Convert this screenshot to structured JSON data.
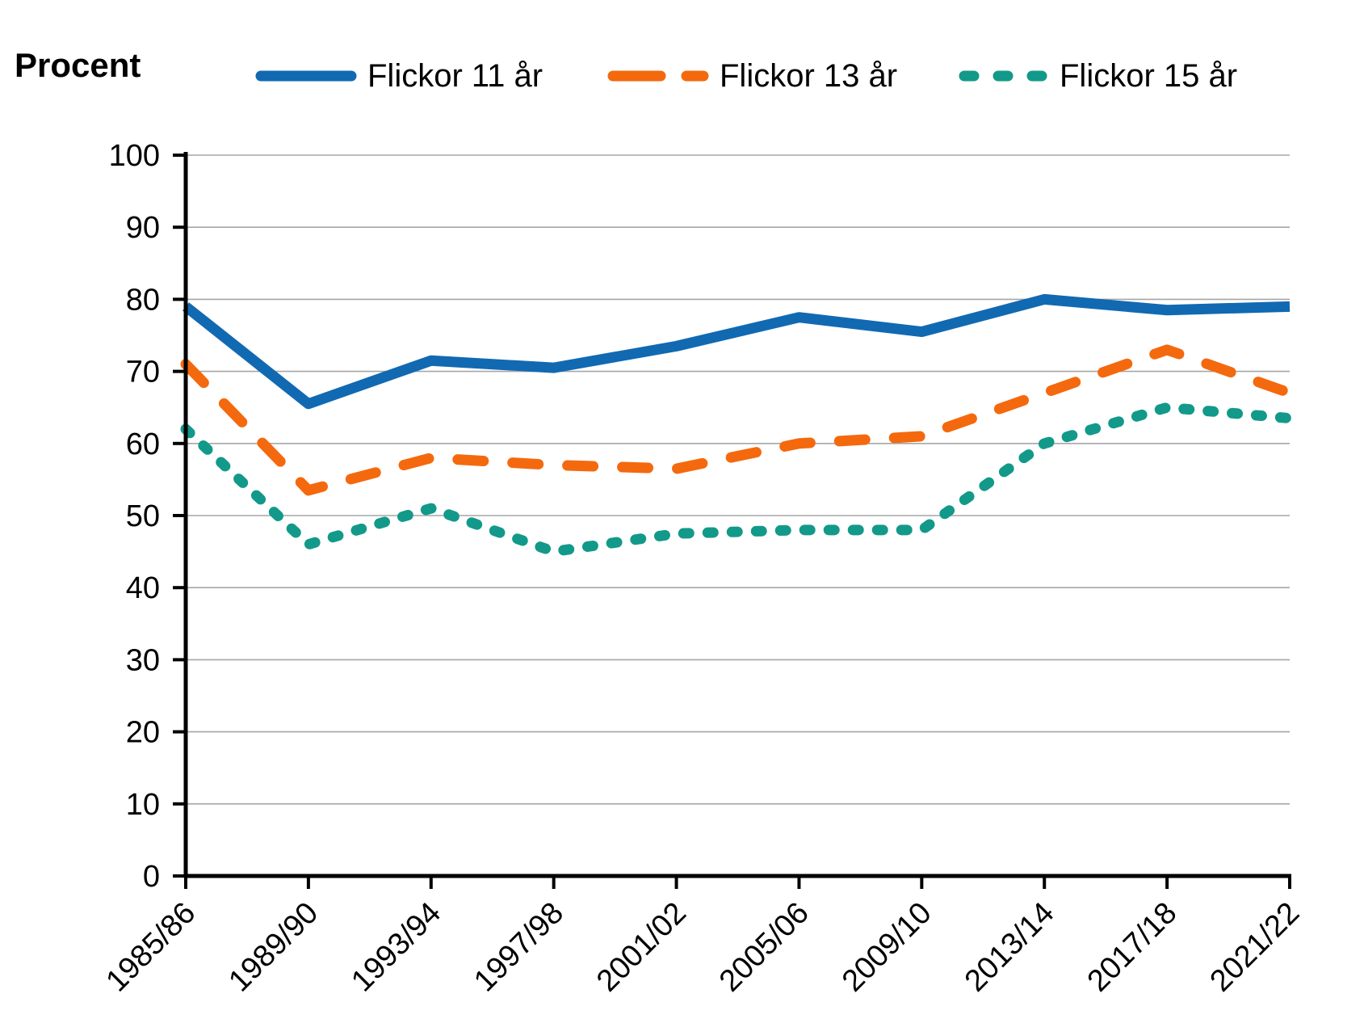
{
  "page": {
    "background": "#FFFFFF"
  },
  "chart_data": {
    "type": "line",
    "title": "",
    "y_axis_title": "Procent",
    "categories": [
      "1985/86",
      "1989/90",
      "1993/94",
      "1997/98",
      "2001/02",
      "2005/06",
      "2009/10",
      "2013/14",
      "2017/18",
      "2021/22"
    ],
    "series": [
      {
        "name": "Flickor 11 år",
        "color": "#1169B2",
        "line_style": "solid",
        "values": [
          79,
          65.5,
          71.5,
          70.5,
          73.5,
          77.5,
          75.5,
          80,
          78.5,
          79
        ]
      },
      {
        "name": "Flickor 13 år",
        "color": "#F4690E",
        "line_style": "long-dash",
        "values": [
          71,
          53.5,
          58,
          57,
          56.5,
          60,
          61,
          67,
          73,
          67
        ]
      },
      {
        "name": "Flickor 15 år",
        "color": "#12998A",
        "line_style": "short-dash",
        "values": [
          62,
          46,
          51,
          45,
          47.5,
          48,
          48,
          60,
          65,
          63.5
        ]
      }
    ],
    "ylim": [
      0,
      100
    ],
    "y_tick_step": 10,
    "y_tick_labels": [
      "0",
      "10",
      "20",
      "30",
      "40",
      "50",
      "60",
      "70",
      "80",
      "90",
      "100"
    ],
    "grid": "horizontal",
    "legend_position": "top",
    "colors": {
      "gridline": "#A6A6A6",
      "axis": "#000000",
      "text": "#000000"
    }
  }
}
